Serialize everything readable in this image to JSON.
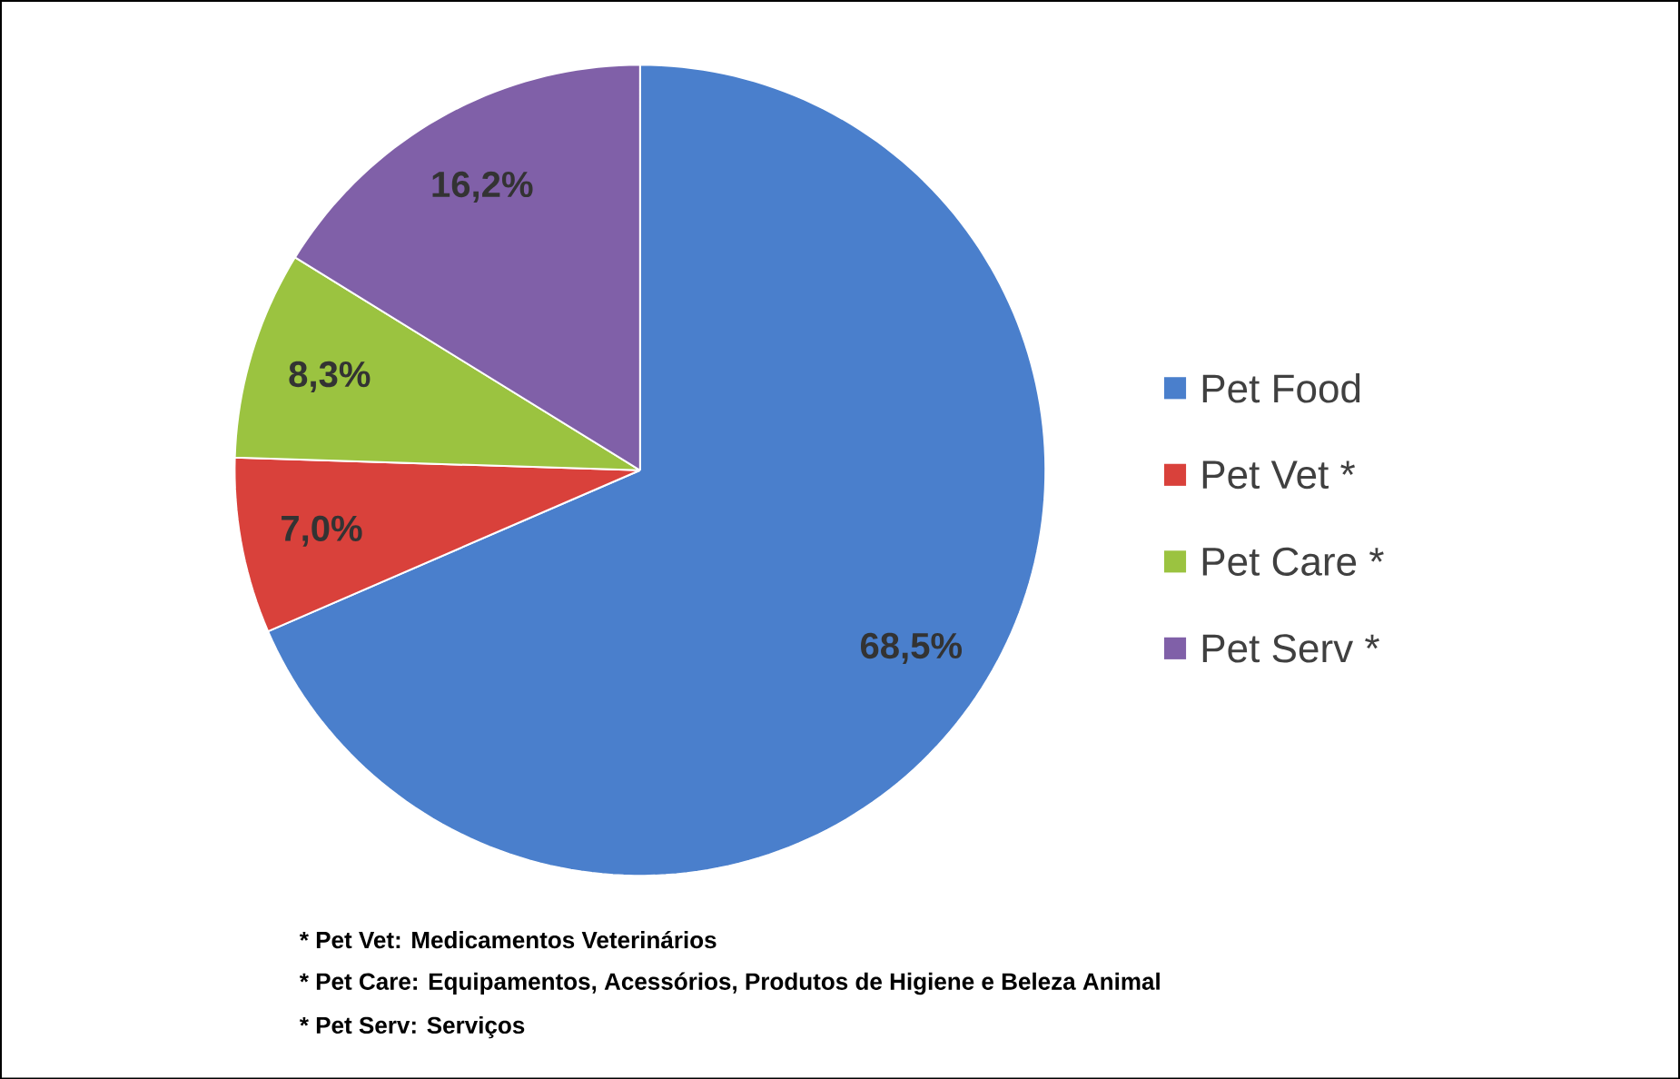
{
  "chart_data": {
    "type": "pie",
    "categories": [
      "Pet Food",
      "Pet Vet *",
      "Pet Care *",
      "Pet Serv *"
    ],
    "values": [
      68.5,
      7.0,
      8.3,
      16.2
    ],
    "value_labels": [
      "68,5%",
      "7,0%",
      "8,3%",
      "16,2%"
    ],
    "colors": [
      "#4a7fcc",
      "#d9413b",
      "#9bc340",
      "#8060a8"
    ],
    "legend": "right",
    "annotations": [
      "* Pet Vet: Medicamentos Veterinários",
      "* Pet Care: Equipamentos, Acessórios, Produtos de Higiene e Beleza Animal",
      "* Pet Serv: Serviços"
    ]
  }
}
